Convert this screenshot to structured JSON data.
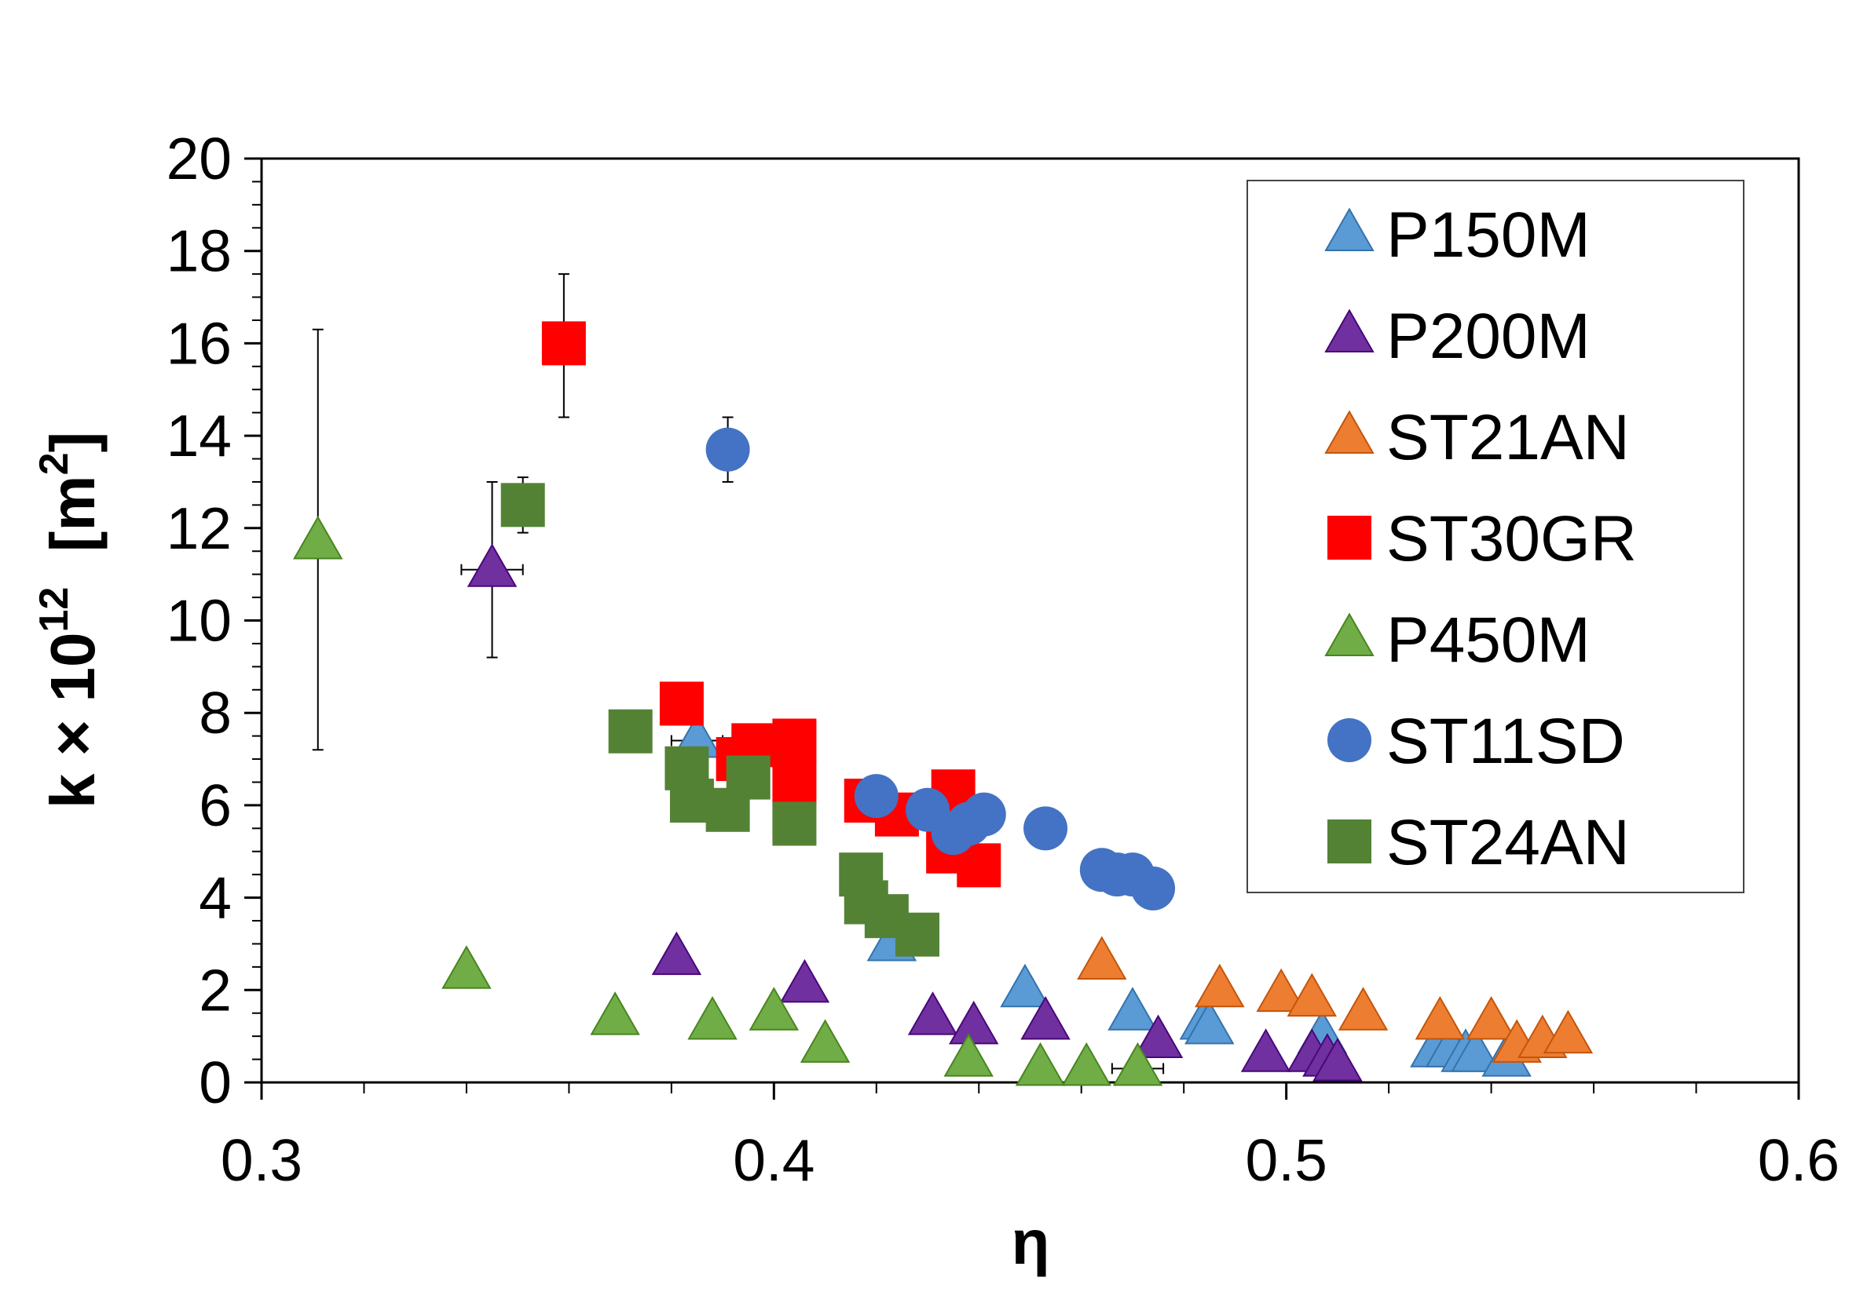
{
  "chart_data": {
    "type": "scatter",
    "title": "",
    "xlabel": "η",
    "ylabel_parts": [
      "k × 10",
      "12",
      "  [m",
      "2",
      "]"
    ],
    "xlim": [
      0.3,
      0.6
    ],
    "ylim": [
      0,
      20
    ],
    "x_ticks": [
      "0.3",
      "0.4",
      "0.5",
      "0.6"
    ],
    "y_ticks": [
      "0",
      "2",
      "4",
      "6",
      "8",
      "10",
      "12",
      "14",
      "16",
      "18",
      "20"
    ],
    "grid": false,
    "legend_position": "top-right",
    "series": [
      {
        "name": "P150M",
        "marker": "triangle",
        "color": "#5b9bd5",
        "points": [
          [
            0.385,
            7.4
          ],
          [
            0.423,
            3.0
          ],
          [
            0.449,
            2.0
          ],
          [
            0.47,
            1.5
          ],
          [
            0.484,
            1.3
          ],
          [
            0.485,
            1.2
          ],
          [
            0.507,
            1.0
          ],
          [
            0.529,
            0.7
          ],
          [
            0.532,
            0.7
          ],
          [
            0.535,
            0.6
          ],
          [
            0.537,
            0.6
          ],
          [
            0.543,
            0.5
          ]
        ]
      },
      {
        "name": "P200M",
        "marker": "triangle",
        "color": "#7030a0",
        "points": [
          [
            0.345,
            11.1
          ],
          [
            0.381,
            2.7
          ],
          [
            0.406,
            2.1
          ],
          [
            0.431,
            1.4
          ],
          [
            0.439,
            1.2
          ],
          [
            0.453,
            1.3
          ],
          [
            0.475,
            0.9
          ],
          [
            0.496,
            0.6
          ],
          [
            0.505,
            0.6
          ],
          [
            0.508,
            0.5
          ],
          [
            0.51,
            0.4
          ]
        ]
      },
      {
        "name": "ST21AN",
        "marker": "triangle",
        "color": "#ed7d31",
        "points": [
          [
            0.464,
            2.6
          ],
          [
            0.487,
            2.0
          ],
          [
            0.499,
            1.9
          ],
          [
            0.505,
            1.8
          ],
          [
            0.515,
            1.5
          ],
          [
            0.53,
            1.3
          ],
          [
            0.54,
            1.3
          ],
          [
            0.545,
            0.8
          ],
          [
            0.55,
            0.9
          ],
          [
            0.555,
            1.0
          ]
        ]
      },
      {
        "name": "ST30GR",
        "marker": "square",
        "color": "#ff0000",
        "points": [
          [
            0.359,
            16.0
          ],
          [
            0.382,
            8.2
          ],
          [
            0.393,
            7.0
          ],
          [
            0.396,
            7.3
          ],
          [
            0.404,
            7.4
          ],
          [
            0.404,
            6.5
          ],
          [
            0.418,
            6.1
          ],
          [
            0.424,
            5.8
          ],
          [
            0.435,
            6.3
          ],
          [
            0.434,
            5.0
          ],
          [
            0.44,
            4.7
          ]
        ]
      },
      {
        "name": "P450M",
        "marker": "triangle",
        "color": "#70ad47",
        "points": [
          [
            0.311,
            11.7
          ],
          [
            0.34,
            2.4
          ],
          [
            0.369,
            1.4
          ],
          [
            0.388,
            1.3
          ],
          [
            0.4,
            1.5
          ],
          [
            0.41,
            0.8
          ],
          [
            0.438,
            0.5
          ],
          [
            0.452,
            0.3
          ],
          [
            0.461,
            0.3
          ],
          [
            0.471,
            0.3
          ]
        ]
      },
      {
        "name": "ST11SD",
        "marker": "circle",
        "color": "#4472c4",
        "points": [
          [
            0.391,
            13.7
          ],
          [
            0.42,
            6.2
          ],
          [
            0.43,
            5.9
          ],
          [
            0.435,
            5.4
          ],
          [
            0.438,
            5.6
          ],
          [
            0.441,
            5.8
          ],
          [
            0.453,
            5.5
          ],
          [
            0.464,
            4.6
          ],
          [
            0.467,
            4.5
          ],
          [
            0.47,
            4.5
          ],
          [
            0.474,
            4.2
          ]
        ]
      },
      {
        "name": "ST24AN",
        "marker": "square",
        "color": "#548235",
        "points": [
          [
            0.351,
            12.5
          ],
          [
            0.372,
            7.6
          ],
          [
            0.383,
            6.8
          ],
          [
            0.384,
            6.1
          ],
          [
            0.391,
            5.9
          ],
          [
            0.395,
            6.6
          ],
          [
            0.404,
            5.6
          ],
          [
            0.417,
            4.5
          ],
          [
            0.418,
            3.9
          ],
          [
            0.422,
            3.6
          ],
          [
            0.428,
            3.2
          ]
        ]
      }
    ],
    "error_bars": [
      {
        "series": "P450M",
        "x": 0.311,
        "y_low": 7.2,
        "y_high": 16.3
      },
      {
        "series": "P200M",
        "x": 0.345,
        "y": 11.1,
        "y_low": 9.2,
        "y_high": 13.0,
        "x_low": 0.339,
        "x_high": 0.351
      },
      {
        "series": "ST24AN",
        "x": 0.351,
        "y_low": 11.9,
        "y_high": 13.1
      },
      {
        "series": "ST30GR",
        "x": 0.359,
        "y_low": 14.4,
        "y_high": 17.5
      },
      {
        "series": "ST11SD",
        "x": 0.391,
        "y_low": 13.0,
        "y_high": 14.4
      },
      {
        "series": "P150M",
        "x": 0.385,
        "y": 7.4,
        "x_low": 0.38,
        "x_high": 0.39
      },
      {
        "series": "ST11SD",
        "x": 0.474,
        "y_low": 3.9,
        "y_high": 4.5
      },
      {
        "series": "P450M",
        "x": 0.471,
        "y": 0.3,
        "x_low": 0.466,
        "x_high": 0.476
      }
    ]
  }
}
